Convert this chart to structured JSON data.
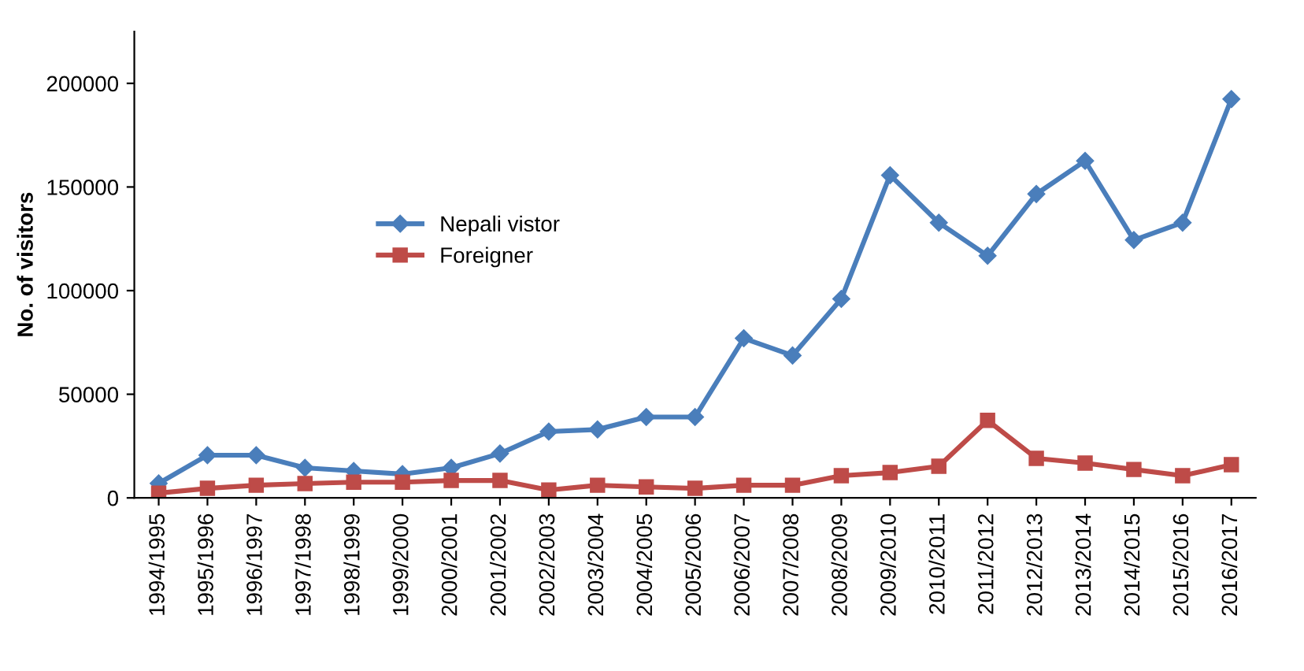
{
  "chart_data": {
    "type": "line",
    "ylabel": "No. of visitors",
    "categories": [
      "1994/1995",
      "1995/1996",
      "1996/1997",
      "1997/1998",
      "1998/1999",
      "1999/2000",
      "2000/2001",
      "2001/2002",
      "2002/2003",
      "2003/2004",
      "2004/2005",
      "2005/2006",
      "2006/2007",
      "2007/2008",
      "2008/2009",
      "2009/2010",
      "2010/2011",
      "2011/2012",
      "2012/2013",
      "2013/2014",
      "2014/2015",
      "2015/2016",
      "2016/2017"
    ],
    "series": [
      {
        "name": "Nepali vistor",
        "color": "#4a7ebb",
        "marker": "diamond",
        "values": [
          7000,
          20600,
          20600,
          14500,
          13000,
          11500,
          14500,
          21400,
          32000,
          33000,
          39000,
          39000,
          77000,
          68700,
          96000,
          155700,
          132800,
          116800,
          146600,
          162600,
          124400,
          132800,
          192400
        ]
      },
      {
        "name": "Foreigner",
        "color": "#be4b48",
        "marker": "square",
        "values": [
          2300,
          4600,
          6100,
          6900,
          7600,
          7600,
          8400,
          8400,
          3800,
          6100,
          5300,
          4600,
          6100,
          6100,
          10700,
          12200,
          15300,
          37400,
          19100,
          16800,
          13700,
          10700,
          16000
        ]
      }
    ],
    "ylim": [
      0,
      225000
    ],
    "yticks": [
      0,
      50000,
      100000,
      150000,
      200000
    ],
    "grid": false,
    "legend": "center left",
    "line_style": "solid"
  }
}
